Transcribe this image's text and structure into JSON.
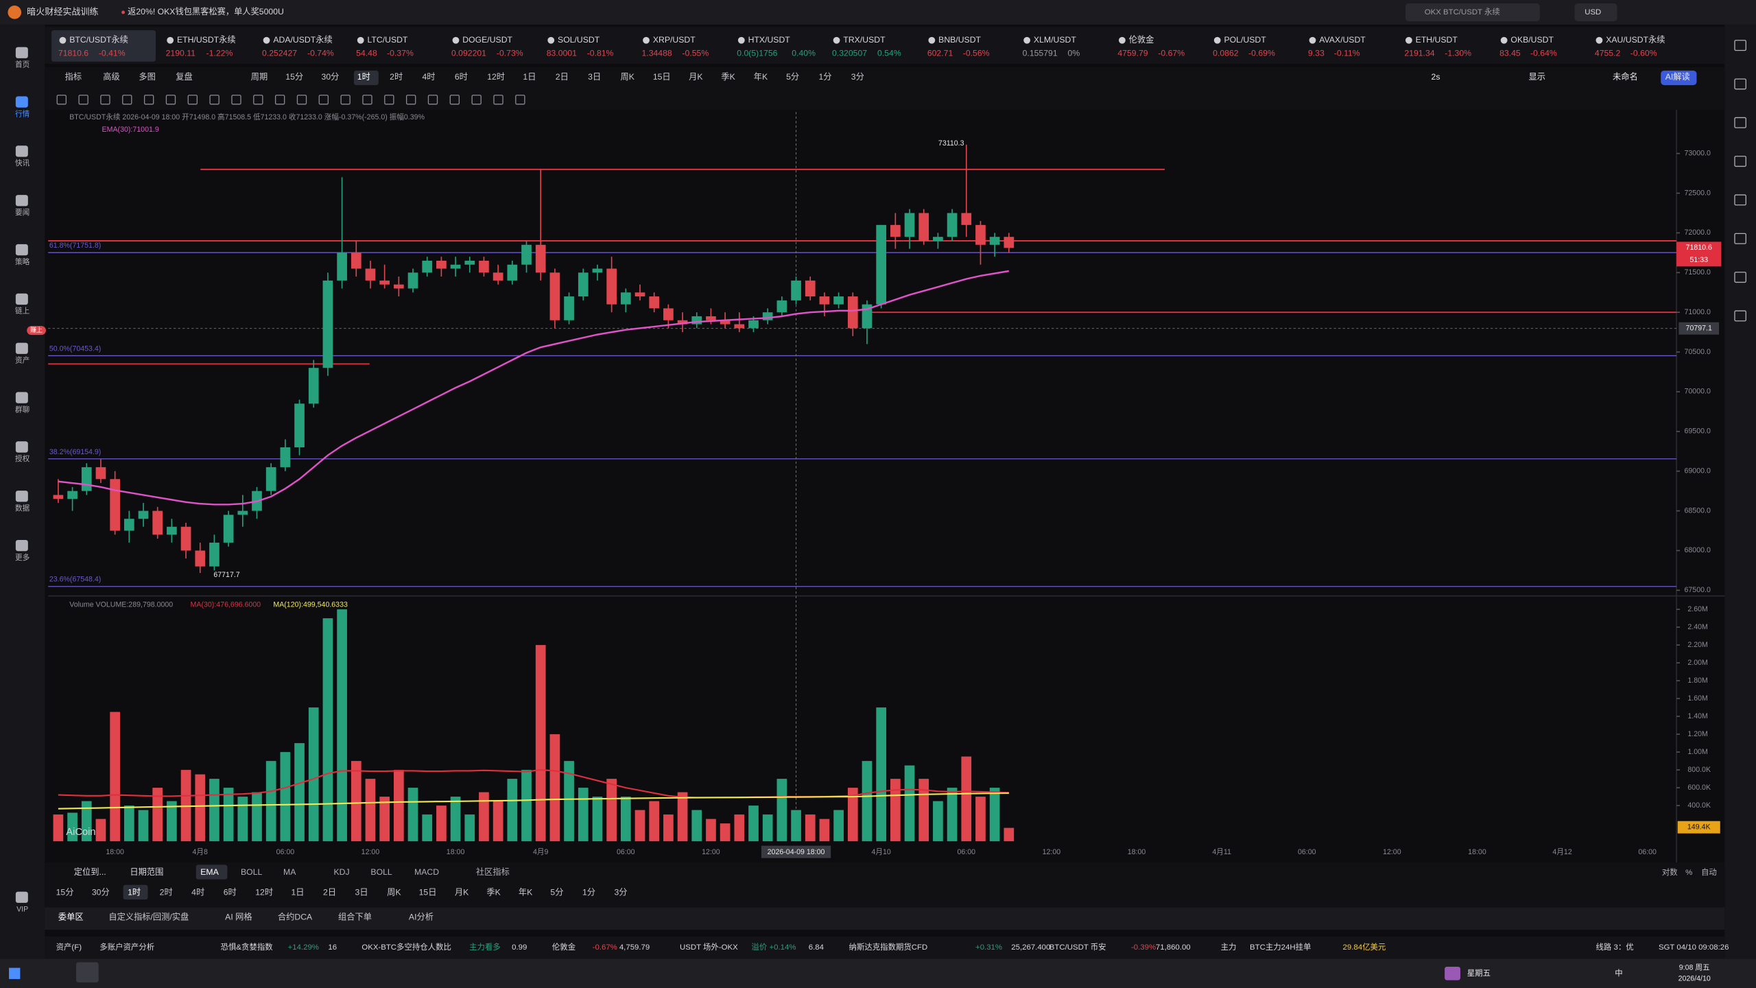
{
  "title_bar": {
    "app": "暗火财经实战训练",
    "promo": "返20%! OKX钱包黑客松赛，单人奖5000U",
    "search": "OKX BTC/USDT 永续",
    "currency": "USD"
  },
  "tickers": [
    {
      "name": "BTC/USDT永续",
      "price": "71810.6",
      "change": "-0.41%"
    },
    {
      "name": "ETH/USDT永续",
      "price": "2190.11",
      "change": "-1.22%"
    },
    {
      "name": "ADA/USDT永续",
      "price": "0.252427",
      "change": "-0.74%"
    },
    {
      "name": "LTC/USDT",
      "price": "54.48",
      "change": "-0.37%"
    },
    {
      "name": "DOGE/USDT",
      "price": "0.092201",
      "change": "-0.73%"
    },
    {
      "name": "SOL/USDT",
      "price": "83.0001",
      "change": "-0.81%"
    },
    {
      "name": "XRP/USDT",
      "price": "1.34488",
      "change": "-0.55%"
    },
    {
      "name": "HTX/USDT",
      "price": "0.0(5)1756",
      "change": "0.40%"
    },
    {
      "name": "TRX/USDT",
      "price": "0.320507",
      "change": "0.54%"
    },
    {
      "name": "BNB/USDT",
      "price": "602.71",
      "change": "-0.56%"
    },
    {
      "name": "XLM/USDT",
      "price": "0.155791",
      "change": "0%"
    },
    {
      "name": "伦敦金",
      "price": "4759.79",
      "change": "-0.67%"
    },
    {
      "name": "POL/USDT",
      "price": "0.0862",
      "change": "-0.69%"
    },
    {
      "name": "AVAX/USDT",
      "price": "9.33",
      "change": "-0.11%"
    },
    {
      "name": "ETH/USDT",
      "price": "2191.34",
      "change": "-1.30%"
    },
    {
      "name": "OKB/USDT",
      "price": "83.45",
      "change": "-0.64%"
    },
    {
      "name": "XAU/USDT永续",
      "price": "4755.2",
      "change": "-0.60%"
    }
  ],
  "toolbar": {
    "left": [
      "指标",
      "高级",
      "多图",
      "复盘",
      "周期"
    ],
    "periods": [
      "15分",
      "30分",
      "1时",
      "2时",
      "4时",
      "6时",
      "12时",
      "1日",
      "2日",
      "3日",
      "周K",
      "15日",
      "月K",
      "季K",
      "年K",
      "5分",
      "1分",
      "3分"
    ],
    "selected": "1时",
    "right": [
      "2s",
      "显示",
      "未命名",
      "AI解读"
    ]
  },
  "sidebar": [
    "首页",
    "行情",
    "快讯",
    "要闻",
    "策略",
    "链上",
    "资产",
    "群聊",
    "授权",
    "数据",
    "更多",
    "VIP"
  ],
  "sidebar_badge": "赚上",
  "chart_data": [
    {
      "type": "candlestick",
      "legend": "BTC/USDT永续 2026-04-09 18:00 开71498.0 高71508.5 低71233.0 收71233.0 涨幅-0.37%(-265.0) 振幅0.39%",
      "ema_legend": "EMA(30):71001.9",
      "ylim": [
        67457,
        73522
      ],
      "yticks": [
        {
          "value": 67500,
          "label": "67500.0"
        },
        {
          "value": 68000,
          "label": "68000.0"
        },
        {
          "value": 68500,
          "label": "68500.0"
        },
        {
          "value": 69000,
          "label": "69000.0"
        },
        {
          "value": 69500,
          "label": "69500.0"
        },
        {
          "value": 70000,
          "label": "70000.0"
        },
        {
          "value": 70500,
          "label": "70500.0"
        },
        {
          "value": 71000,
          "label": "71000.0"
        },
        {
          "value": 71500,
          "label": "71500.0"
        },
        {
          "value": 72000,
          "label": "72000.0"
        },
        {
          "value": 72500,
          "label": "72500.0"
        },
        {
          "value": 73000,
          "label": "73000.0"
        }
      ],
      "x_labels": [
        "18:00",
        "4月8",
        "06:00",
        "12:00",
        "18:00",
        "4月9",
        "06:00",
        "12:00",
        "2026-04-09 18:00",
        "4月10",
        "06:00",
        "12:00",
        "18:00",
        "4月11",
        "06:00",
        "12:00",
        "18:00",
        "4月12",
        "06:00"
      ],
      "up_color": "#26a17b",
      "down_color": "#e0464e",
      "candles": [
        [
          68700,
          68900,
          68600,
          68650
        ],
        [
          68650,
          68800,
          68500,
          68750
        ],
        [
          68750,
          69100,
          68700,
          69050
        ],
        [
          69050,
          69150,
          68850,
          68900
        ],
        [
          68900,
          69000,
          68200,
          68250
        ],
        [
          68250,
          68500,
          68100,
          68400
        ],
        [
          68400,
          68600,
          68300,
          68500
        ],
        [
          68500,
          68550,
          68150,
          68200
        ],
        [
          68200,
          68400,
          68100,
          68300
        ],
        [
          68300,
          68350,
          67900,
          68000
        ],
        [
          68000,
          68100,
          67717.7,
          67800
        ],
        [
          67800,
          68200,
          67750,
          68100
        ],
        [
          68100,
          68500,
          68050,
          68450
        ],
        [
          68450,
          68700,
          68300,
          68500
        ],
        [
          68500,
          68800,
          68400,
          68750
        ],
        [
          68750,
          69100,
          68700,
          69050
        ],
        [
          69050,
          69400,
          69000,
          69300
        ],
        [
          69300,
          69900,
          69200,
          69850
        ],
        [
          69850,
          70400,
          69800,
          70300
        ],
        [
          70300,
          71500,
          70200,
          71400
        ],
        [
          71400,
          72700,
          71300,
          71750
        ],
        [
          71750,
          71900,
          71450,
          71550
        ],
        [
          71550,
          71650,
          71300,
          71400
        ],
        [
          71400,
          71600,
          71300,
          71350
        ],
        [
          71350,
          71450,
          71200,
          71300
        ],
        [
          71300,
          71550,
          71250,
          71500
        ],
        [
          71500,
          71700,
          71450,
          71650
        ],
        [
          71650,
          71700,
          71450,
          71550
        ],
        [
          71550,
          71700,
          71450,
          71600
        ],
        [
          71600,
          71700,
          71500,
          71650
        ],
        [
          71650,
          71700,
          71450,
          71500
        ],
        [
          71500,
          71600,
          71350,
          71400
        ],
        [
          71400,
          71650,
          71350,
          71600
        ],
        [
          71600,
          71900,
          71500,
          71850
        ],
        [
          71850,
          72800,
          71400,
          71500
        ],
        [
          71500,
          71550,
          70800,
          70900
        ],
        [
          70900,
          71250,
          70850,
          71200
        ],
        [
          71200,
          71550,
          71150,
          71500
        ],
        [
          71500,
          71600,
          71400,
          71550
        ],
        [
          71550,
          71700,
          71000,
          71100
        ],
        [
          71100,
          71300,
          71000,
          71250
        ],
        [
          71250,
          71350,
          71150,
          71200
        ],
        [
          71200,
          71250,
          71000,
          71050
        ],
        [
          71050,
          71100,
          70800,
          70900
        ],
        [
          70900,
          71000,
          70750,
          70850
        ],
        [
          70850,
          71000,
          70800,
          70950
        ],
        [
          70950,
          71050,
          70850,
          70900
        ],
        [
          70900,
          71000,
          70800,
          70850
        ],
        [
          70850,
          71000,
          70750,
          70800
        ],
        [
          70800,
          70950,
          70750,
          70900
        ],
        [
          70900,
          71050,
          70850,
          71000
        ],
        [
          71000,
          71200,
          70950,
          71150
        ],
        [
          71150,
          71450,
          71100,
          71400
        ],
        [
          71400,
          71450,
          71150,
          71200
        ],
        [
          71200,
          71250,
          70950,
          71100
        ],
        [
          71100,
          71250,
          71050,
          71200
        ],
        [
          71200,
          71250,
          70700,
          70800
        ],
        [
          70800,
          71150,
          70600,
          71100
        ],
        [
          71100,
          72100,
          71050,
          72100
        ],
        [
          72100,
          72250,
          71800,
          71950
        ],
        [
          71950,
          72300,
          71800,
          72250
        ],
        [
          72250,
          72300,
          71850,
          71900
        ],
        [
          71900,
          72000,
          71800,
          71950
        ],
        [
          71950,
          72300,
          71900,
          72250
        ],
        [
          72250,
          73110.3,
          71950,
          72100
        ],
        [
          72100,
          72150,
          71600,
          71850
        ],
        [
          71850,
          72000,
          71700,
          71950
        ],
        [
          71950,
          72000,
          71750,
          71810.6
        ]
      ],
      "ema": {
        "color": "#e052c8",
        "values": [
          68870,
          68850,
          68830,
          68800,
          68760,
          68730,
          68700,
          68670,
          68640,
          68610,
          68590,
          68580,
          68580,
          68590,
          68620,
          68680,
          68780,
          68900,
          69050,
          69200,
          69320,
          69420,
          69510,
          69600,
          69690,
          69780,
          69870,
          69960,
          70050,
          70130,
          70220,
          70310,
          70400,
          70490,
          70560,
          70600,
          70640,
          70680,
          70720,
          70750,
          70780,
          70800,
          70820,
          70840,
          70860,
          70880,
          70890,
          70900,
          70910,
          70920,
          70930,
          70950,
          70980,
          71000,
          71010,
          71020,
          71020,
          71040,
          71100,
          71160,
          71220,
          71270,
          71320,
          71370,
          71420,
          71460,
          71490,
          71520
        ]
      },
      "levels": [
        {
          "value": 72800,
          "color": "#e0303f"
        },
        {
          "value": 71900,
          "color": "#e0303f"
        },
        {
          "value": 71000,
          "color": "#e0303f"
        },
        {
          "value": 70350,
          "color": "#e0303f"
        }
      ],
      "fib": [
        {
          "label": "61.8%(71751.8)",
          "value": 71751.8
        },
        {
          "label": "50.0%(70453.4)",
          "value": 70453.4
        },
        {
          "label": "38.2%(69154.9)",
          "value": 69154.9
        },
        {
          "label": "23.6%(67548.4)",
          "value": 67548.4
        }
      ],
      "fib_color": "#6a5acd",
      "high_label": "73110.3",
      "low_label": "67717.7",
      "last_price": 71810.6,
      "countdown": "51:33",
      "crosshair_price": 70797.1
    },
    {
      "type": "bar",
      "legend": "Volume VOLUME:289,798.0000",
      "ma30_legend": "MA(30):476,696.6000",
      "ma120_legend": "MA(120):499,540.6333",
      "ylim": [
        0,
        2700000
      ],
      "yticks": [
        {
          "value": 400000,
          "label": "400.0K"
        },
        {
          "value": 600000,
          "label": "600.0K"
        },
        {
          "value": 800000,
          "label": "800.0K"
        },
        {
          "value": 1000000,
          "label": "1.00M"
        },
        {
          "value": 1200000,
          "label": "1.20M"
        },
        {
          "value": 1400000,
          "label": "1.40M"
        },
        {
          "value": 1600000,
          "label": "1.60M"
        },
        {
          "value": 1800000,
          "label": "1.80M"
        },
        {
          "value": 2000000,
          "label": "2.00M"
        },
        {
          "value": 2200000,
          "label": "2.20M"
        },
        {
          "value": 2400000,
          "label": "2.40M"
        },
        {
          "value": 2600000,
          "label": "2.60M"
        }
      ],
      "values": [
        300000,
        320000,
        450000,
        250000,
        1450000,
        400000,
        350000,
        600000,
        450000,
        800000,
        750000,
        700000,
        600000,
        500000,
        550000,
        900000,
        1000000,
        1100000,
        1500000,
        2500000,
        2600000,
        900000,
        700000,
        500000,
        800000,
        600000,
        300000,
        400000,
        500000,
        300000,
        550000,
        450000,
        700000,
        800000,
        2200000,
        1200000,
        900000,
        600000,
        500000,
        700000,
        500000,
        350000,
        450000,
        300000,
        550000,
        350000,
        250000,
        200000,
        300000,
        400000,
        300000,
        700000,
        350000,
        300000,
        250000,
        350000,
        600000,
        900000,
        1500000,
        700000,
        850000,
        700000,
        450000,
        600000,
        950000,
        500000,
        600000,
        150000
      ],
      "series": [
        {
          "name": "MA(30)",
          "color": "#e0303f",
          "values": [
            520000,
            515000,
            510000,
            510000,
            520000,
            515000,
            510000,
            505000,
            505000,
            510000,
            515000,
            520000,
            525000,
            530000,
            540000,
            560000,
            600000,
            650000,
            700000,
            760000,
            790000,
            790000,
            785000,
            785000,
            790000,
            790000,
            785000,
            785000,
            790000,
            790000,
            795000,
            790000,
            785000,
            780000,
            800000,
            790000,
            760000,
            720000,
            680000,
            640000,
            600000,
            570000,
            540000,
            510000,
            495000,
            490000,
            490000,
            490000,
            490000,
            495000,
            495000,
            500000,
            500000,
            500000,
            500000,
            505000,
            510000,
            540000,
            560000,
            575000,
            580000,
            575000,
            560000,
            555000,
            560000,
            555000,
            550000,
            545000
          ]
        },
        {
          "name": "MA(120)",
          "color": "#f2e94e",
          "values": [
            365000,
            368000,
            371000,
            374000,
            377000,
            380000,
            383000,
            386000,
            389000,
            392000,
            395000,
            398000,
            400000,
            403000,
            405000,
            408000,
            410000,
            413000,
            416000,
            420000,
            424000,
            428000,
            432000,
            436000,
            440000,
            442000,
            444000,
            446000,
            448000,
            450000,
            452000,
            454000,
            456000,
            460000,
            466000,
            470000,
            472000,
            474000,
            476000,
            478000,
            480000,
            482000,
            484000,
            486000,
            488000,
            489000,
            490000,
            491000,
            492000,
            493000,
            494000,
            495000,
            496000,
            497000,
            498000,
            499000,
            500000,
            504000,
            510000,
            515000,
            520000,
            525000,
            528000,
            531000,
            534000,
            536000,
            538000,
            540000
          ]
        }
      ],
      "last_label": "149.4K",
      "watermark": "AiCoin"
    }
  ],
  "indicator_row": {
    "left": [
      "定位到...",
      "日期范围"
    ],
    "items": [
      "EMA",
      "BOLL",
      "MA",
      "KDJ",
      "BOLL",
      "MACD",
      "社区指标"
    ],
    "right": [
      "对数",
      "%",
      "自动"
    ]
  },
  "timeframes": [
    "15分",
    "30分",
    "1时",
    "2时",
    "4时",
    "6时",
    "12时",
    "1日",
    "2日",
    "3日",
    "周K",
    "15日",
    "月K",
    "季K",
    "年K",
    "5分",
    "1分",
    "3分"
  ],
  "tabs": [
    "委单区",
    "自定义指标/回测/实盘",
    "AI 网格",
    "合约DCA",
    "组合下单",
    "AI分析"
  ],
  "status": [
    "资产(F)",
    "多账户资产分析",
    "恐惧&贪婪指数",
    "+14.29%",
    "16",
    "OKX-BTC多空持仓人数比",
    "主力看多",
    "0.99",
    "伦敦金",
    "-0.67%",
    "4,759.79",
    "USDT 场外-OKX",
    "溢价 +0.14%",
    "6.84",
    "纳斯达克指数期货CFD",
    "+0.31%",
    "25,267.400",
    "BTC/USDT 币安",
    "-0.39%",
    "71,860.00",
    "主力",
    "BTC主力24H挂单",
    "29.84亿美元",
    "线路 3：优",
    "SGT 04/10 09:08:26"
  ],
  "taskbar": {
    "weekday": "星期五",
    "time": "9:08 周五",
    "date": "2026/4/10",
    "ime": "中"
  }
}
